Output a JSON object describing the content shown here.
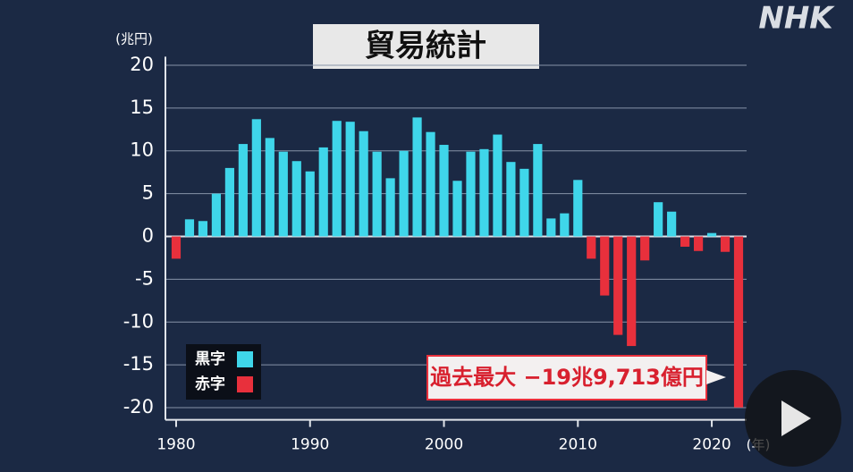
{
  "logo": "NHK",
  "chart_data": {
    "type": "bar",
    "title": "貿易統計",
    "y_unit": "(兆円)",
    "x_unit": "(年)",
    "annotation": "過去最大 −19兆9,713億円",
    "x": [
      1980,
      1981,
      1982,
      1983,
      1984,
      1985,
      1986,
      1987,
      1988,
      1989,
      1990,
      1991,
      1992,
      1993,
      1994,
      1995,
      1996,
      1997,
      1998,
      1999,
      2000,
      2001,
      2002,
      2003,
      2004,
      2005,
      2006,
      2007,
      2008,
      2009,
      2010,
      2011,
      2012,
      2013,
      2014,
      2015,
      2016,
      2017,
      2018,
      2019,
      2020,
      2021,
      2022
    ],
    "series": [
      {
        "name": "黒字",
        "color": "#3fd6ea",
        "values": [
          null,
          2.0,
          1.8,
          5.0,
          8.0,
          10.8,
          13.7,
          11.5,
          9.9,
          8.8,
          7.6,
          10.4,
          13.5,
          13.4,
          12.3,
          9.9,
          6.8,
          10.0,
          13.9,
          12.2,
          10.7,
          6.5,
          9.9,
          10.2,
          11.9,
          8.7,
          7.9,
          10.8,
          2.1,
          2.7,
          6.6,
          null,
          null,
          null,
          null,
          null,
          4.0,
          2.9,
          null,
          null,
          0.4,
          null,
          null
        ]
      },
      {
        "name": "赤字",
        "color": "#e8303c",
        "values": [
          -2.6,
          null,
          null,
          null,
          null,
          null,
          null,
          null,
          null,
          null,
          null,
          null,
          null,
          null,
          null,
          null,
          null,
          null,
          null,
          null,
          null,
          null,
          null,
          null,
          null,
          null,
          null,
          null,
          null,
          null,
          null,
          -2.6,
          -6.9,
          -11.5,
          -12.8,
          -2.8,
          null,
          null,
          -1.2,
          -1.7,
          null,
          -1.8,
          -19.9713
        ]
      }
    ],
    "xlim": [
      1979.2,
      2022.6
    ],
    "xticks": [
      1980,
      1990,
      2000,
      2010,
      2020
    ],
    "ylim": [
      -21,
      21
    ],
    "yticks": [
      20,
      15,
      10,
      5,
      0,
      -5,
      -10,
      -15,
      -20
    ],
    "grid": true
  }
}
